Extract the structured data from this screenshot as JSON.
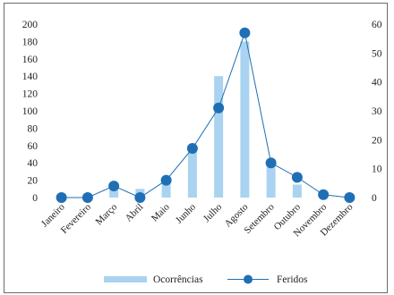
{
  "chart_data": {
    "type": "bar",
    "categories": [
      "Janeiro",
      "Fevereiro",
      "Março",
      "Abril",
      "Maio",
      "Junho",
      "Julho",
      "Agosto",
      "Setembro",
      "Outubro",
      "Novembro",
      "Dezembro"
    ],
    "series": [
      {
        "name": "Ocorrências",
        "type": "bar",
        "axis": "left",
        "color": "#a9d3f0",
        "values": [
          3,
          2,
          10,
          10,
          20,
          53,
          140,
          180,
          40,
          15,
          4,
          1
        ]
      },
      {
        "name": "Feridos",
        "type": "line",
        "axis": "right",
        "color": "#1f6fb5",
        "values": [
          0,
          0,
          4,
          0,
          6,
          17,
          31,
          57,
          12,
          7,
          1,
          0
        ]
      }
    ],
    "yleft": {
      "min": 0,
      "max": 200,
      "ticks": [
        0,
        20,
        40,
        60,
        80,
        100,
        120,
        140,
        160,
        180,
        200
      ]
    },
    "yright": {
      "min": 0,
      "max": 60,
      "ticks": [
        0,
        10,
        20,
        30,
        40,
        50,
        60
      ]
    },
    "grid": false,
    "legend": "bottom"
  }
}
